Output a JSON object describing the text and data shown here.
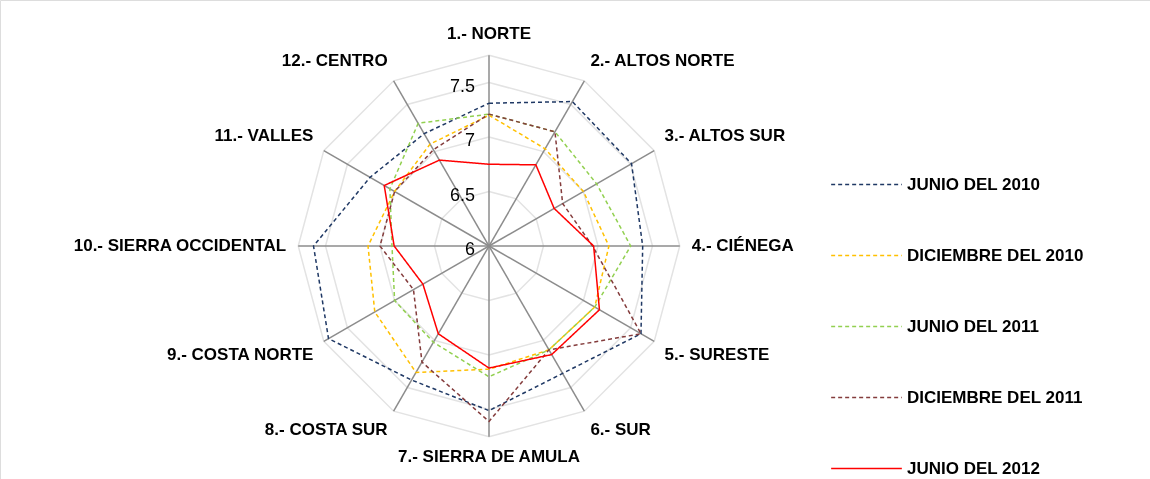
{
  "chart_data": {
    "type": "radar",
    "categories": [
      "1.- NORTE",
      "2.- ALTOS NORTE",
      "3.- ALTOS SUR",
      "4.- CIÉNEGA",
      "5.- SURESTE",
      "6.- SUR",
      "7.- SIERRA DE AMULA",
      "8.- COSTA SUR",
      "9.- COSTA NORTE",
      "10.- SIERRA OCCIDENTAL",
      "11.- VALLES",
      "12.- CENTRO"
    ],
    "series": [
      {
        "name": "JUNIO DEL 2010",
        "color": "#1f3864",
        "line_style": "dashed",
        "values": [
          7.31,
          7.53,
          7.51,
          7.41,
          7.61,
          7.35,
          7.51,
          7.42,
          7.7,
          7.61,
          7.26,
          7.19
        ]
      },
      {
        "name": "DICIEMBRE DEL 2010",
        "color": "#ffc000",
        "line_style": "dashed",
        "values": [
          7.2,
          7.03,
          7.0,
          7.1,
          7.12,
          7.1,
          7.13,
          7.34,
          7.21,
          7.11,
          7.0,
          7.08
        ]
      },
      {
        "name": "JUNIO DEL 2011",
        "color": "#92d050",
        "line_style": "dashed",
        "values": [
          7.21,
          7.21,
          7.14,
          7.3,
          7.12,
          7.1,
          7.2,
          7.02,
          7.0,
          6.89,
          7.05,
          7.3
        ]
      },
      {
        "name": "DICIEMBRE DEL 2011",
        "color": "#843c3c",
        "line_style": "dashed",
        "values": [
          7.21,
          7.21,
          6.78,
          6.95,
          7.61,
          7.1,
          7.61,
          7.23,
          6.8,
          7.0,
          7.0,
          7.02
        ]
      },
      {
        "name": "JUNIO DEL 2012",
        "color": "#ff0000",
        "line_style": "solid",
        "values": [
          6.75,
          6.86,
          6.69,
          6.96,
          7.17,
          7.15,
          7.12,
          6.93,
          6.7,
          6.87,
          7.11,
          6.91
        ]
      }
    ],
    "ylim": [
      6,
      7.75
    ],
    "yticks": [
      6,
      6.5,
      7,
      7.5
    ],
    "grid": true,
    "legend": "right"
  }
}
